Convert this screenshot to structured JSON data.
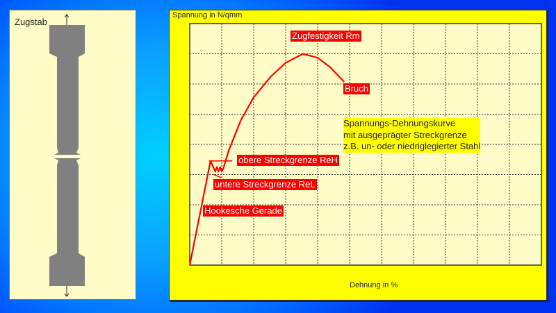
{
  "specimen": {
    "title": "Zugstab"
  },
  "chart_data": {
    "type": "line",
    "ylabel": "Spannung in N/qmm",
    "xlabel": "Dehnung in %",
    "xlim": [
      0,
      11
    ],
    "ylim": [
      0,
      8
    ],
    "grid": true,
    "tick_labels": false,
    "series": [
      {
        "color": "#ff0000",
        "x": [
          0,
          0.65,
          0.8,
          0.85,
          0.9,
          0.95,
          1.0,
          1.05,
          1.22,
          1.6,
          2.0,
          2.54,
          3.0,
          3.54,
          4.0,
          4.4,
          4.83
        ],
        "y": [
          0,
          3.45,
          3.1,
          3.25,
          3.1,
          3.25,
          3.1,
          3.2,
          3.8,
          4.8,
          5.56,
          6.25,
          6.7,
          7.0,
          6.87,
          6.55,
          6.07
        ]
      }
    ],
    "annotations": [
      {
        "text": "Zugfestigkeit Rm",
        "style": "red"
      },
      {
        "text": "Bruch",
        "style": "red"
      },
      {
        "text": "obere Streckgrenze ReH",
        "style": "red"
      },
      {
        "text": "untere Streckgrenze ReL",
        "style": "red"
      },
      {
        "text": "Hookesche Gerade",
        "style": "red"
      }
    ],
    "note": [
      "Spannungs-Dehnungskurve",
      "mit ausgeprägter Streckgrenze",
      "z.B. un- oder niedriglegierter Stahl"
    ]
  },
  "colors": {
    "panel": "#ffff00",
    "plot_bg": "#fffcc8",
    "curve": "#ff0000",
    "label_bg": "#ff0000",
    "specimen": "#808080"
  }
}
